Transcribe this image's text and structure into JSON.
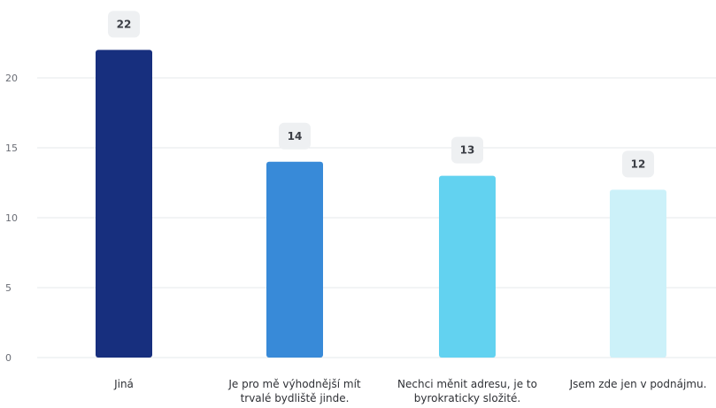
{
  "chart_data": {
    "type": "bar",
    "title": "",
    "xlabel": "",
    "ylabel": "",
    "categories": [
      [
        "Jiná"
      ],
      [
        "Je pro mě výhodnější mít",
        "trvalé bydliště jinde."
      ],
      [
        "Nechci měnit adresu, je to",
        "byrokraticky složité."
      ],
      [
        "Jsem zde jen v podnájmu."
      ]
    ],
    "values": [
      22,
      14,
      13,
      12
    ],
    "data_labels": [
      "22",
      "14",
      "13",
      "12"
    ],
    "colors": [
      "#172f7e",
      "#388ad8",
      "#62d2f0",
      "#ccf1f9"
    ],
    "ylim": [
      0,
      22
    ],
    "yticks": [
      "0",
      "5",
      "10",
      "15",
      "20"
    ],
    "grid": true,
    "legend": "none"
  }
}
